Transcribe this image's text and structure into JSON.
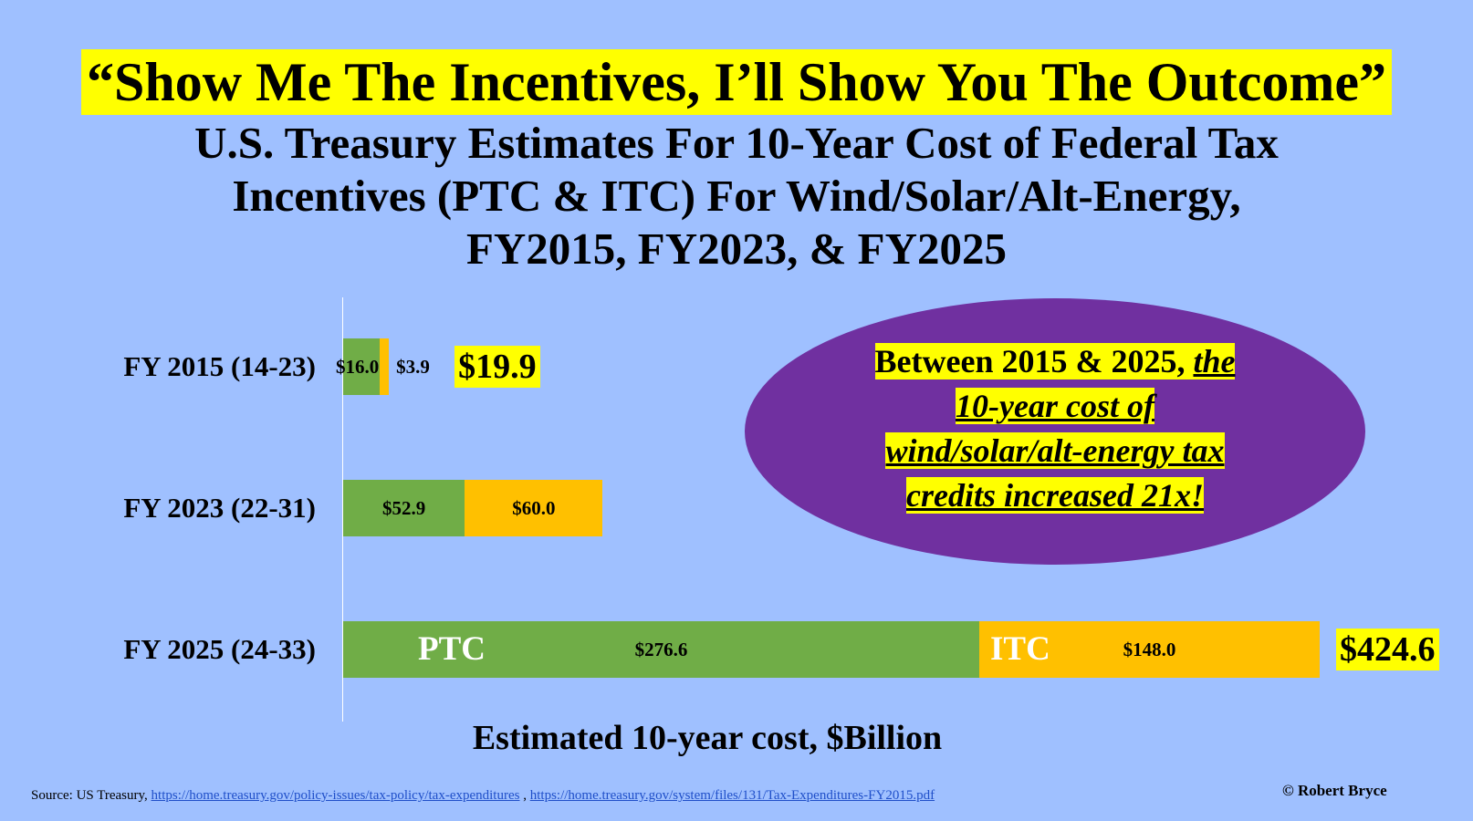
{
  "slogan": "“Show Me The Incentives, I’ll Show You The Outcome”",
  "title_lines": [
    "U.S. Treasury Estimates For 10-Year Cost of Federal Tax",
    "Incentives (PTC & ITC) For Wind/Solar/Alt-Energy,",
    "FY2015, FY2023, & FY2025"
  ],
  "callout": {
    "part1": "Between 2015 & 2025, ",
    "part2": "the",
    "line2": "10-year cost of",
    "line3": "wind/solar/alt-energy tax",
    "line4": "credits increased 21x!"
  },
  "source": {
    "prefix": "Source: US Treasury, ",
    "link1": "https://home.treasury.gov/policy-issues/tax-policy/tax-expenditures",
    "sep": " ,  ",
    "link2": "https://home.treasury.gov/system/files/131/Tax-Expenditures-FY2015.pdf"
  },
  "credit": "© Robert Bryce",
  "colors": {
    "background": "#9fc0ff",
    "ptc": "#70ad47",
    "itc": "#ffc000",
    "highlight": "#ffff00",
    "ellipse": "#7030a0"
  },
  "chart_data": {
    "type": "bar",
    "orientation": "horizontal",
    "stacked": true,
    "categories": [
      "FY 2015 (14-23)",
      "FY 2023 (22-31)",
      "FY 2025 (24-33)"
    ],
    "series": [
      {
        "name": "PTC",
        "values": [
          16.0,
          52.9,
          276.6
        ],
        "labels": [
          "$16.0",
          "$52.9",
          "$276.6"
        ]
      },
      {
        "name": "ITC",
        "values": [
          3.9,
          60.0,
          148.0
        ],
        "labels": [
          "$3.9",
          "$60.0",
          "$148.0"
        ]
      }
    ],
    "totals": [
      "$19.9",
      null,
      "$424.6"
    ],
    "xlabel": "Estimated 10-year cost, $Billion",
    "xlim": [
      0,
      424.6
    ],
    "grid": false
  }
}
